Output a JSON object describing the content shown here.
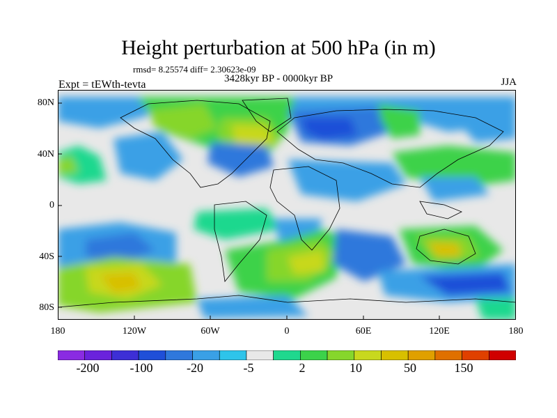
{
  "title": "Height perturbation at 500 hPa (in m)",
  "stats": "rmsd= 8.25574 diff= 2.30623e-09",
  "experiment": "Expt = tEWth-tevta",
  "period": "3428kyr BP - 0000kyr BP",
  "season": "JJA",
  "y_ticks": [
    "80N",
    "40N",
    "0",
    "40S",
    "80S"
  ],
  "x_ticks": [
    "180",
    "120W",
    "60W",
    "0",
    "60E",
    "120E",
    "180"
  ],
  "colorbar": {
    "colors": [
      "#8a2be2",
      "#6a22dc",
      "#3d2fd6",
      "#1f4fd8",
      "#2f78dc",
      "#3aa0e6",
      "#2ec4ea",
      "#e8e8e8",
      "#1fd88e",
      "#3cd24a",
      "#86d62c",
      "#c8d81e",
      "#d8c000",
      "#e0a000",
      "#e07000",
      "#e04000",
      "#d00000"
    ],
    "labels": [
      "-200",
      "-100",
      "-20",
      "-5",
      "2",
      "10",
      "50",
      "150"
    ]
  }
}
